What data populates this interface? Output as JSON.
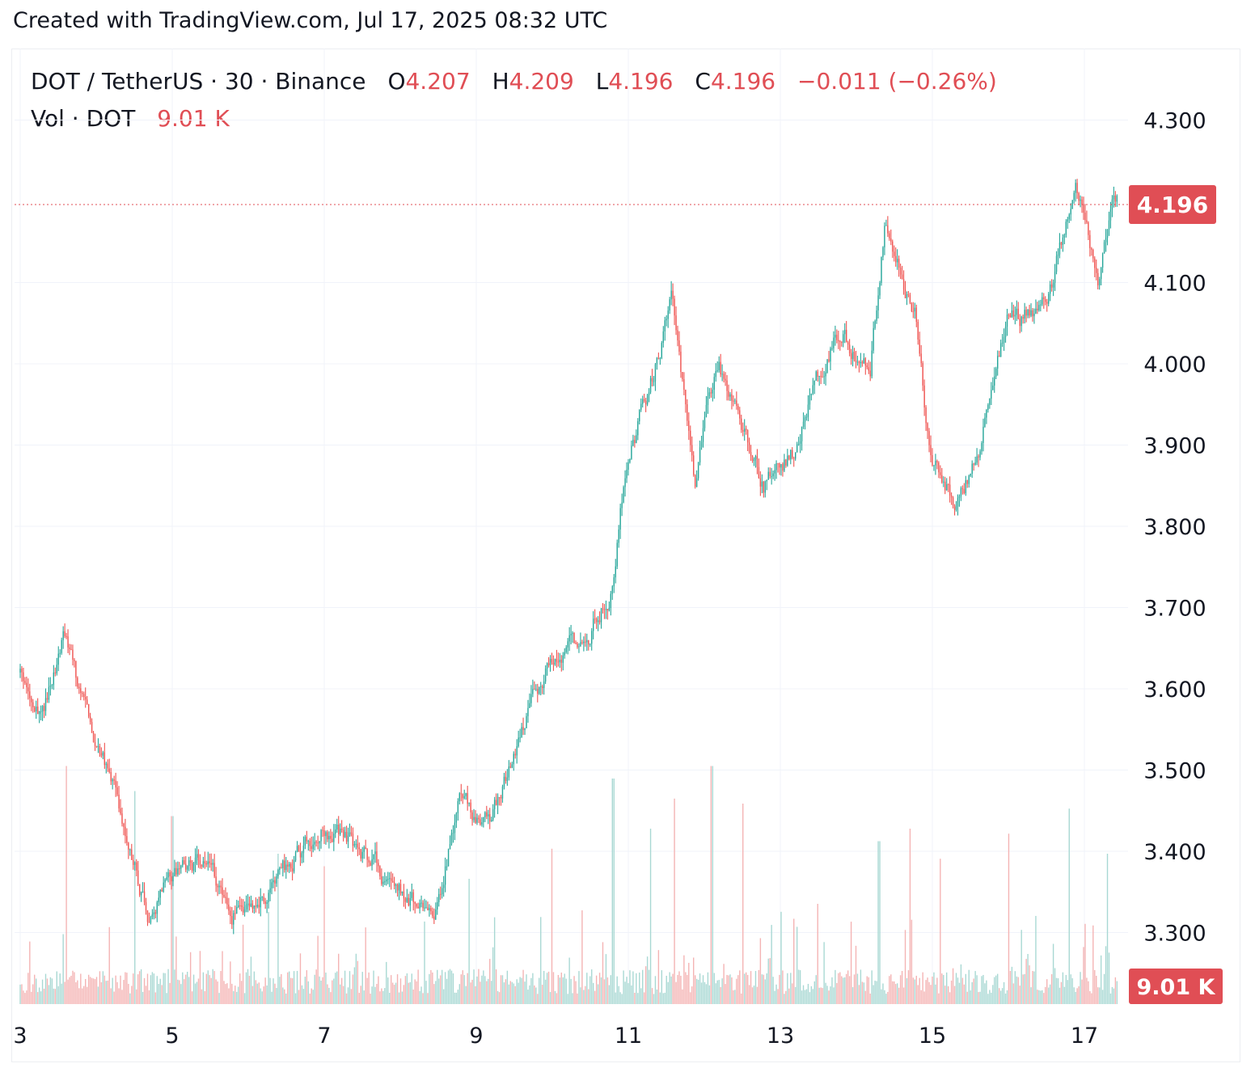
{
  "caption": "Created with TradingView.com, Jul 17, 2025 08:32 UTC",
  "legend": {
    "symbol": "DOT / TetherUS · 30 · Binance",
    "open_label": "O",
    "open": "4.207",
    "high_label": "H",
    "high": "4.209",
    "low_label": "L",
    "low": "4.196",
    "close_label": "C",
    "close": "4.196",
    "change": "−0.011 (−0.26%)",
    "volume_label": "Vol · DOT",
    "volume": "9.01 K"
  },
  "colors": {
    "up": "#26a69a",
    "down": "#ef5350",
    "up_volume": "#a8d8d3",
    "down_volume": "#f4b3b3",
    "grid": "#f0f3fa",
    "price_tag": "#e04e55"
  },
  "chart_data": {
    "type": "candlestick",
    "x_ticks": [
      "3",
      "5",
      "7",
      "9",
      "11",
      "13",
      "15",
      "17"
    ],
    "y_ticks": [
      "4.300",
      "4.100",
      "4.000",
      "3.900",
      "3.800",
      "3.700",
      "3.600",
      "3.500",
      "3.400",
      "3.300"
    ],
    "ylim": [
      3.3,
      4.3
    ],
    "current_price": 4.196,
    "current_price_label": "4.196",
    "current_volume_label": "9.01 K",
    "interval": "30",
    "grid": true,
    "price_path": [
      [
        "3",
        3.62
      ],
      [
        "3.3",
        3.56
      ],
      [
        "3.6",
        3.66
      ],
      [
        "4",
        3.54
      ],
      [
        "4.3",
        3.47
      ],
      [
        "4.7",
        3.32
      ],
      [
        "5",
        3.37
      ],
      [
        "5.5",
        3.38
      ],
      [
        "5.8",
        3.32
      ],
      [
        "6.3",
        3.35
      ],
      [
        "6.7",
        3.4
      ],
      [
        "7",
        3.43
      ],
      [
        "7.5",
        3.4
      ],
      [
        "8",
        3.35
      ],
      [
        "8.5",
        3.33
      ],
      [
        "8.8",
        3.47
      ],
      [
        "9.2",
        3.43
      ],
      [
        "9.6",
        3.55
      ],
      [
        "10",
        3.64
      ],
      [
        "10.5",
        3.67
      ],
      [
        "10.8",
        3.72
      ],
      [
        "11",
        3.88
      ],
      [
        "11.3",
        3.97
      ],
      [
        "11.6",
        4.08
      ],
      [
        "11.9",
        3.86
      ],
      [
        "12.2",
        4.0
      ],
      [
        "12.5",
        3.92
      ],
      [
        "12.8",
        3.85
      ],
      [
        "13.2",
        3.89
      ],
      [
        "13.5",
        3.98
      ],
      [
        "13.8",
        4.04
      ],
      [
        "14.2",
        3.99
      ],
      [
        "14.4",
        4.18
      ],
      [
        "14.8",
        4.06
      ],
      [
        "15",
        3.88
      ],
      [
        "15.3",
        3.83
      ],
      [
        "15.6",
        3.88
      ],
      [
        "16",
        4.05
      ],
      [
        "16.3",
        4.06
      ],
      [
        "16.6",
        4.1
      ],
      [
        "16.9",
        4.23
      ],
      [
        "17.2",
        4.09
      ],
      [
        "17.4",
        4.21
      ]
    ],
    "volume_peaks": [
      [
        "3.6",
        0.95
      ],
      [
        "4.5",
        0.85
      ],
      [
        "5",
        0.75
      ],
      [
        "6.4",
        0.6
      ],
      [
        "7",
        0.55
      ],
      [
        "8.9",
        0.5
      ],
      [
        "10",
        0.62
      ],
      [
        "10.8",
        0.9
      ],
      [
        "11.3",
        0.7
      ],
      [
        "11.6",
        0.82
      ],
      [
        "12.1",
        0.95
      ],
      [
        "12.5",
        0.8
      ],
      [
        "13.5",
        0.4
      ],
      [
        "14.3",
        0.65
      ],
      [
        "14.7",
        0.7
      ],
      [
        "15.1",
        0.58
      ],
      [
        "16",
        0.68
      ],
      [
        "16.8",
        0.78
      ],
      [
        "17.3",
        0.6
      ]
    ]
  }
}
